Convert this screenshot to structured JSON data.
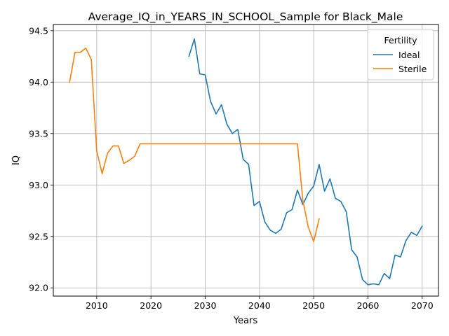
{
  "chart_data": {
    "type": "line",
    "title": "Average_IQ_in_YEARS_IN_SCHOOL_Sample for Black_Male",
    "xlabel": "Years",
    "ylabel": "IQ",
    "xlim": [
      2002,
      2073
    ],
    "ylim": [
      91.92,
      94.56
    ],
    "xticks": [
      2010,
      2020,
      2030,
      2040,
      2050,
      2060,
      2070
    ],
    "yticks": [
      92.0,
      92.5,
      93.0,
      93.5,
      94.0,
      94.5
    ],
    "xtick_labels": [
      "2010",
      "2020",
      "2030",
      "2040",
      "2050",
      "2060",
      "2070"
    ],
    "ytick_labels": [
      "92.0",
      "92.5",
      "93.0",
      "93.5",
      "94.0",
      "94.5"
    ],
    "grid": true,
    "legend": {
      "title": "Fertility",
      "position": "top-right"
    },
    "series": [
      {
        "name": "Ideal",
        "color": "#1f77b4",
        "x": [
          2027,
          2028,
          2029,
          2030,
          2031,
          2032,
          2033,
          2034,
          2035,
          2036,
          2037,
          2038,
          2039,
          2040,
          2041,
          2042,
          2043,
          2044,
          2045,
          2046,
          2047,
          2048,
          2049,
          2050,
          2051,
          2052,
          2053,
          2054,
          2055,
          2056,
          2057,
          2058,
          2059,
          2060,
          2061,
          2062,
          2063,
          2064,
          2065,
          2066,
          2067,
          2068,
          2069,
          2070
        ],
        "y": [
          94.25,
          94.42,
          94.08,
          94.07,
          93.81,
          93.69,
          93.78,
          93.59,
          93.5,
          93.54,
          93.25,
          93.2,
          92.8,
          92.84,
          92.64,
          92.56,
          92.53,
          92.57,
          92.73,
          92.76,
          92.95,
          92.81,
          92.92,
          92.99,
          93.2,
          92.94,
          93.06,
          92.87,
          92.84,
          92.74,
          92.37,
          92.3,
          92.08,
          92.03,
          92.04,
          92.03,
          92.14,
          92.09,
          92.32,
          92.3,
          92.46,
          92.54,
          92.51,
          92.6
        ]
      },
      {
        "name": "Sterile",
        "color": "#ff7f0e",
        "x": [
          2005,
          2006,
          2007,
          2008,
          2009,
          2010,
          2011,
          2012,
          2013,
          2014,
          2015,
          2016,
          2017,
          2018,
          2019,
          2020,
          2021,
          2022,
          2023,
          2024,
          2025,
          2026,
          2027,
          2028,
          2029,
          2030,
          2031,
          2032,
          2033,
          2034,
          2035,
          2036,
          2037,
          2038,
          2039,
          2040,
          2041,
          2042,
          2043,
          2044,
          2045,
          2046,
          2047,
          2048,
          2049,
          2050,
          2051
        ],
        "y": [
          94.0,
          94.29,
          94.29,
          94.33,
          94.22,
          93.33,
          93.11,
          93.31,
          93.38,
          93.38,
          93.21,
          93.24,
          93.28,
          93.4,
          93.4,
          93.4,
          93.4,
          93.4,
          93.4,
          93.4,
          93.4,
          93.4,
          93.4,
          93.4,
          93.4,
          93.4,
          93.4,
          93.4,
          93.4,
          93.4,
          93.4,
          93.4,
          93.4,
          93.4,
          93.4,
          93.4,
          93.4,
          93.4,
          93.4,
          93.4,
          93.4,
          93.4,
          93.4,
          92.85,
          92.59,
          92.45,
          92.67
        ]
      }
    ]
  }
}
